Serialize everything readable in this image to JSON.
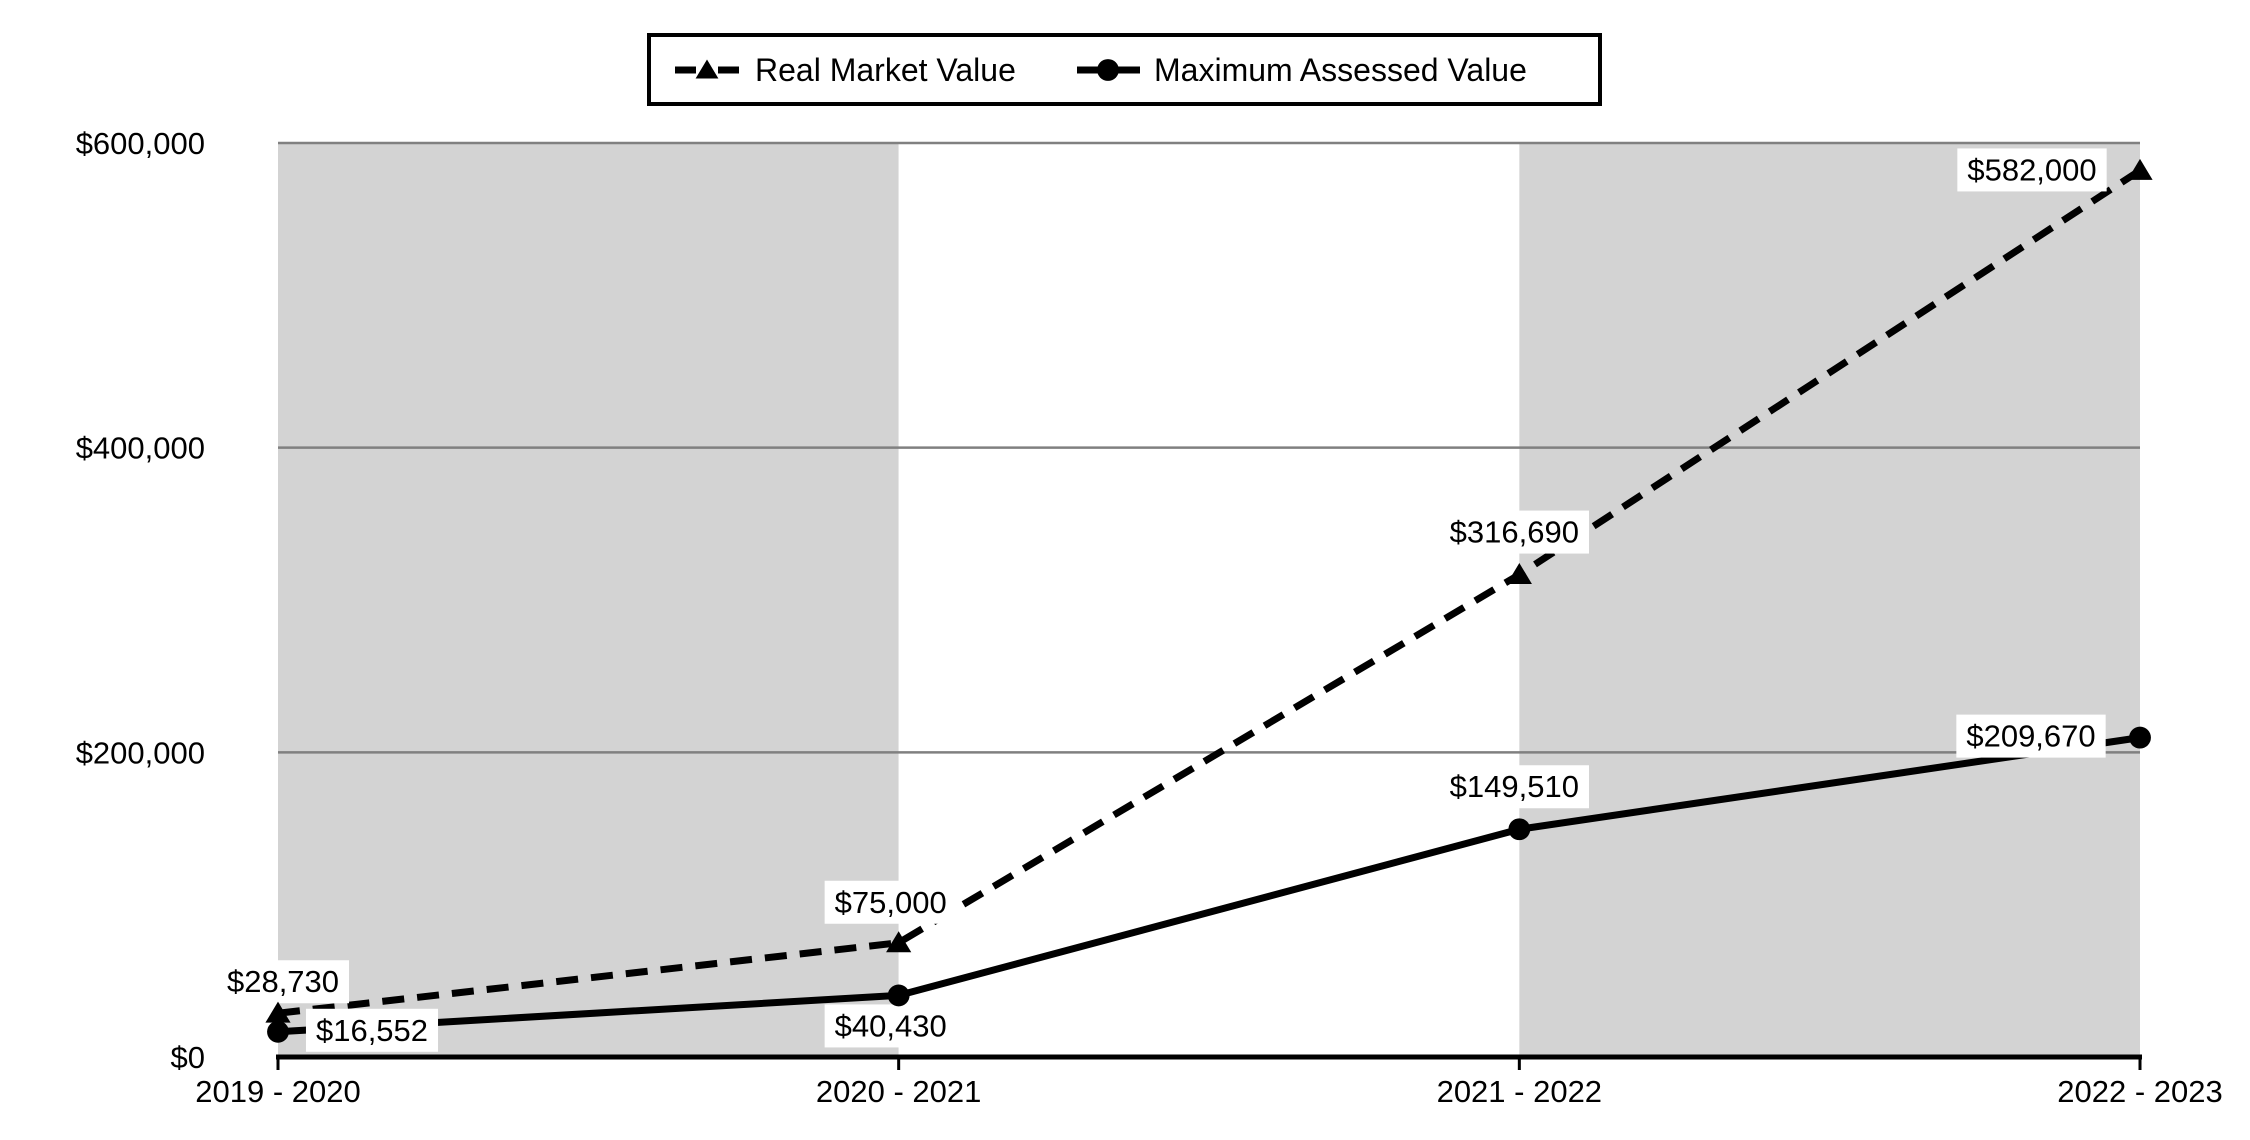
{
  "chart_data": {
    "type": "line",
    "title": "",
    "categories": [
      "2019 - 2020",
      "2020 - 2021",
      "2021 - 2022",
      "2022 - 2023"
    ],
    "ylim": [
      0,
      600000
    ],
    "y_ticks": [
      {
        "value": 0,
        "label": "$0"
      },
      {
        "value": 200000,
        "label": "$200,000"
      },
      {
        "value": 400000,
        "label": "$400,000"
      },
      {
        "value": 600000,
        "label": "$600,000"
      }
    ],
    "grid": true,
    "legend": {
      "position": "top-center",
      "entries": [
        "Real Market Value",
        "Maximum Assessed Value"
      ]
    },
    "plot_bands": {
      "colors": [
        "#d3d3d3",
        "#ffffff",
        "#d3d3d3"
      ]
    },
    "series": [
      {
        "name": "Real Market Value",
        "line_style": "dashed",
        "marker": "triangle",
        "values": [
          28730,
          75000,
          316690,
          582000
        ],
        "point_labels": [
          "$28,730",
          "$75,000",
          "$316,690",
          "$582,000"
        ],
        "label_offsets": [
          [
            5,
            -32
          ],
          [
            -8,
            -41
          ],
          [
            -5,
            -43
          ],
          [
            -108,
            -1
          ]
        ]
      },
      {
        "name": "Maximum Assessed Value",
        "line_style": "solid",
        "marker": "circle",
        "values": [
          16552,
          40430,
          149510,
          209670
        ],
        "point_labels": [
          "$16,552",
          "$40,430",
          "$149,510",
          "$209,670"
        ],
        "label_offsets": [
          [
            94,
            -2
          ],
          [
            -8,
            30
          ],
          [
            -5,
            -43
          ],
          [
            -109,
            -2
          ]
        ]
      }
    ],
    "colors": {
      "series_line": "#000000",
      "gridline": "#808080",
      "axis": "#000000",
      "band_gray": "#d3d3d3",
      "label_bg": "#ffffff",
      "text": "#000000",
      "background": "#ffffff",
      "legend_border": "#000000"
    }
  }
}
